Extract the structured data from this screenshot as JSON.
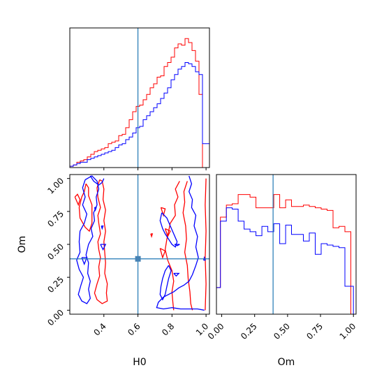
{
  "chart_data": {
    "type": "corner",
    "parameters": [
      "H0",
      "Om"
    ],
    "truth": {
      "H0": 0.6,
      "Om": 0.39
    },
    "colors": {
      "red_series": "#ff0000",
      "blue_series": "#0000ff",
      "truth": "#1f77b4"
    },
    "panels": {
      "h0_hist": {
        "xlim": [
          0.2,
          1.02
        ],
        "ymax": 1.0,
        "bin_edges": [
          0.2,
          0.2205,
          0.241,
          0.2615,
          0.282,
          0.3025,
          0.323,
          0.3435,
          0.364,
          0.3845,
          0.405,
          0.4255,
          0.446,
          0.4665,
          0.487,
          0.5075,
          0.528,
          0.5485,
          0.569,
          0.5895,
          0.61,
          0.6305,
          0.651,
          0.6715,
          0.692,
          0.7125,
          0.733,
          0.7535,
          0.774,
          0.7945,
          0.815,
          0.8355,
          0.856,
          0.8765,
          0.897,
          0.9175,
          0.938,
          0.9585,
          0.979,
          0.9995,
          1.02
        ],
        "red": [
          0.01,
          0.02,
          0.04,
          0.05,
          0.06,
          0.08,
          0.1,
          0.12,
          0.13,
          0.14,
          0.15,
          0.18,
          0.19,
          0.2,
          0.24,
          0.25,
          0.3,
          0.36,
          0.42,
          0.46,
          0.47,
          0.51,
          0.55,
          0.6,
          0.63,
          0.68,
          0.69,
          0.76,
          0.79,
          0.83,
          0.9,
          0.93,
          0.92,
          0.97,
          0.94,
          0.88,
          0.8,
          0.55,
          0.0,
          0.0
        ],
        "blue": [
          0.01,
          0.02,
          0.03,
          0.04,
          0.04,
          0.06,
          0.07,
          0.08,
          0.09,
          0.1,
          0.11,
          0.12,
          0.13,
          0.15,
          0.17,
          0.18,
          0.21,
          0.23,
          0.26,
          0.3,
          0.31,
          0.36,
          0.39,
          0.42,
          0.45,
          0.48,
          0.52,
          0.56,
          0.6,
          0.66,
          0.7,
          0.74,
          0.76,
          0.79,
          0.78,
          0.76,
          0.72,
          0.7,
          0.18,
          0.18
        ]
      },
      "om_hist": {
        "xlim": [
          -0.04,
          1.02
        ],
        "ymax": 1.0,
        "bin_edges": [
          -0.04,
          -0.01,
          0.035,
          0.08,
          0.125,
          0.17,
          0.215,
          0.26,
          0.305,
          0.35,
          0.395,
          0.44,
          0.485,
          0.53,
          0.575,
          0.62,
          0.665,
          0.71,
          0.755,
          0.8,
          0.845,
          0.89,
          0.935,
          0.98,
          1.0
        ],
        "red": [
          0.2,
          0.73,
          0.82,
          0.83,
          0.9,
          0.9,
          0.88,
          0.8,
          0.8,
          0.8,
          0.9,
          0.8,
          0.86,
          0.81,
          0.81,
          0.82,
          0.81,
          0.8,
          0.79,
          0.78,
          0.65,
          0.66,
          0.62,
          0.0
        ],
        "blue": [
          0.2,
          0.7,
          0.8,
          0.79,
          0.7,
          0.64,
          0.62,
          0.59,
          0.66,
          0.62,
          0.68,
          0.53,
          0.67,
          0.6,
          0.6,
          0.55,
          0.61,
          0.45,
          0.53,
          0.52,
          0.51,
          0.5,
          0.21,
          0.21
        ]
      },
      "joint": {
        "xlim": [
          0.2,
          1.02
        ],
        "ylim": [
          -0.03,
          1.03
        ],
        "red_contours": [
          [
            [
              0.295,
              0.96
            ],
            [
              0.285,
              0.9
            ],
            [
              0.27,
              0.86
            ],
            [
              0.255,
              0.78
            ],
            [
              0.26,
              0.7
            ],
            [
              0.29,
              0.63
            ],
            [
              0.315,
              0.6
            ],
            [
              0.33,
              0.66
            ],
            [
              0.33,
              0.72
            ],
            [
              0.33,
              0.8
            ],
            [
              0.31,
              0.87
            ],
            [
              0.31,
              0.93
            ],
            [
              0.295,
              0.96
            ]
          ],
          [
            [
              0.375,
              0.99
            ],
            [
              0.36,
              0.93
            ],
            [
              0.365,
              0.86
            ],
            [
              0.38,
              0.78
            ],
            [
              0.365,
              0.72
            ],
            [
              0.37,
              0.66
            ],
            [
              0.38,
              0.58
            ],
            [
              0.365,
              0.52
            ],
            [
              0.37,
              0.46
            ],
            [
              0.38,
              0.4
            ],
            [
              0.37,
              0.33
            ],
            [
              0.375,
              0.26
            ],
            [
              0.36,
              0.2
            ],
            [
              0.345,
              0.13
            ],
            [
              0.36,
              0.08
            ],
            [
              0.39,
              0.05
            ],
            [
              0.42,
              0.07
            ],
            [
              0.415,
              0.13
            ],
            [
              0.42,
              0.2
            ],
            [
              0.405,
              0.28
            ],
            [
              0.41,
              0.36
            ],
            [
              0.405,
              0.44
            ],
            [
              0.4,
              0.52
            ],
            [
              0.41,
              0.6
            ],
            [
              0.4,
              0.68
            ],
            [
              0.41,
              0.76
            ],
            [
              0.395,
              0.84
            ],
            [
              0.4,
              0.92
            ],
            [
              0.39,
              0.98
            ],
            [
              0.375,
              0.99
            ]
          ],
          [
            [
              0.23,
              0.86
            ],
            [
              0.25,
              0.8
            ],
            [
              0.26,
              0.84
            ],
            [
              0.245,
              0.88
            ],
            [
              0.23,
              0.86
            ]
          ],
          [
            [
              0.845,
              0.98
            ],
            [
              0.82,
              0.92
            ],
            [
              0.835,
              0.86
            ],
            [
              0.815,
              0.8
            ],
            [
              0.82,
              0.72
            ],
            [
              0.79,
              0.66
            ],
            [
              0.78,
              0.6
            ],
            [
              0.77,
              0.54
            ],
            [
              0.76,
              0.46
            ],
            [
              0.775,
              0.38
            ],
            [
              0.8,
              0.3
            ],
            [
              0.81,
              0.22
            ],
            [
              0.8,
              0.14
            ],
            [
              0.805,
              0.06
            ],
            [
              0.81,
              0.0
            ]
          ],
          [
            [
              0.89,
              0.98
            ],
            [
              0.87,
              0.9
            ],
            [
              0.875,
              0.82
            ],
            [
              0.865,
              0.74
            ],
            [
              0.88,
              0.64
            ],
            [
              0.885,
              0.54
            ],
            [
              0.875,
              0.44
            ],
            [
              0.89,
              0.34
            ],
            [
              0.895,
              0.24
            ],
            [
              0.905,
              0.14
            ],
            [
              0.91,
              0.05
            ],
            [
              0.92,
              0.0
            ]
          ],
          [
            [
              0.76,
              0.62
            ],
            [
              0.775,
              0.56
            ],
            [
              0.79,
              0.6
            ],
            [
              0.76,
              0.62
            ]
          ],
          [
            [
              0.73,
              0.47
            ],
            [
              0.745,
              0.4
            ],
            [
              0.76,
              0.45
            ],
            [
              0.73,
              0.47
            ]
          ],
          [
            [
              0.735,
              0.78
            ],
            [
              0.75,
              0.72
            ],
            [
              0.76,
              0.77
            ],
            [
              0.735,
              0.78
            ]
          ],
          [
            [
              1.0,
              1.0
            ],
            [
              0.995,
              0.8
            ],
            [
              1.0,
              0.6
            ],
            [
              0.995,
              0.4
            ],
            [
              1.0,
              0.2
            ],
            [
              0.995,
              0.0
            ]
          ],
          [
            [
              0.675,
              0.58
            ],
            [
              0.68,
              0.56
            ],
            [
              0.685,
              0.58
            ],
            [
              0.675,
              0.58
            ]
          ]
        ],
        "blue_contours": [
          [
            [
              0.29,
              0.99
            ],
            [
              0.275,
              0.93
            ],
            [
              0.29,
              0.86
            ],
            [
              0.275,
              0.8
            ],
            [
              0.3,
              0.73
            ],
            [
              0.285,
              0.66
            ],
            [
              0.26,
              0.6
            ],
            [
              0.255,
              0.52
            ],
            [
              0.26,
              0.44
            ],
            [
              0.24,
              0.38
            ],
            [
              0.255,
              0.31
            ],
            [
              0.28,
              0.25
            ],
            [
              0.265,
              0.19
            ],
            [
              0.25,
              0.12
            ],
            [
              0.27,
              0.07
            ],
            [
              0.3,
              0.05
            ],
            [
              0.32,
              0.09
            ],
            [
              0.31,
              0.16
            ],
            [
              0.32,
              0.22
            ],
            [
              0.305,
              0.28
            ],
            [
              0.31,
              0.36
            ],
            [
              0.295,
              0.42
            ],
            [
              0.31,
              0.5
            ],
            [
              0.335,
              0.56
            ],
            [
              0.325,
              0.62
            ],
            [
              0.345,
              0.68
            ],
            [
              0.34,
              0.74
            ],
            [
              0.36,
              0.8
            ],
            [
              0.355,
              0.86
            ],
            [
              0.37,
              0.92
            ],
            [
              0.36,
              0.98
            ],
            [
              0.33,
              1.02
            ],
            [
              0.29,
              0.99
            ]
          ],
          [
            [
              0.385,
              0.64
            ],
            [
              0.39,
              0.62
            ],
            [
              0.395,
              0.64
            ],
            [
              0.385,
              0.64
            ]
          ],
          [
            [
              0.38,
              0.5
            ],
            [
              0.395,
              0.46
            ],
            [
              0.41,
              0.5
            ],
            [
              0.38,
              0.5
            ]
          ],
          [
            [
              0.27,
              0.4
            ],
            [
              0.285,
              0.35
            ],
            [
              0.3,
              0.4
            ],
            [
              0.27,
              0.4
            ]
          ],
          [
            [
              0.4,
              1.0
            ],
            [
              0.39,
              0.97
            ],
            [
              0.37,
              0.95
            ],
            [
              0.34,
              0.98
            ],
            [
              0.32,
              1.02
            ]
          ],
          [
            [
              0.9,
              1.02
            ],
            [
              0.915,
              0.96
            ],
            [
              0.9,
              0.9
            ],
            [
              0.92,
              0.84
            ],
            [
              0.915,
              0.78
            ],
            [
              0.94,
              0.72
            ],
            [
              0.93,
              0.64
            ],
            [
              0.95,
              0.56
            ],
            [
              0.94,
              0.48
            ],
            [
              0.955,
              0.4
            ],
            [
              0.94,
              0.34
            ],
            [
              0.92,
              0.27
            ],
            [
              0.9,
              0.22
            ],
            [
              0.87,
              0.19
            ],
            [
              0.84,
              0.17
            ],
            [
              0.81,
              0.14
            ],
            [
              0.78,
              0.12
            ],
            [
              0.75,
              0.1
            ],
            [
              0.72,
              0.06
            ],
            [
              0.71,
              0.02
            ],
            [
              0.75,
              0.01
            ],
            [
              0.8,
              0.02
            ],
            [
              0.85,
              0.01
            ],
            [
              0.9,
              0.01
            ],
            [
              0.95,
              0.01
            ],
            [
              0.99,
              0.0
            ]
          ],
          [
            [
              0.78,
              0.34
            ],
            [
              0.76,
              0.3
            ],
            [
              0.745,
              0.24
            ],
            [
              0.735,
              0.18
            ],
            [
              0.73,
              0.12
            ],
            [
              0.745,
              0.08
            ],
            [
              0.76,
              0.12
            ],
            [
              0.77,
              0.18
            ],
            [
              0.78,
              0.24
            ],
            [
              0.795,
              0.3
            ],
            [
              0.78,
              0.34
            ]
          ],
          [
            [
              0.74,
              0.74
            ],
            [
              0.73,
              0.68
            ],
            [
              0.745,
              0.62
            ],
            [
              0.76,
              0.58
            ],
            [
              0.78,
              0.54
            ],
            [
              0.8,
              0.5
            ],
            [
              0.82,
              0.48
            ],
            [
              0.83,
              0.52
            ],
            [
              0.81,
              0.58
            ],
            [
              0.79,
              0.64
            ],
            [
              0.77,
              0.7
            ],
            [
              0.74,
              0.74
            ]
          ],
          [
            [
              0.345,
              0.78
            ],
            [
              0.35,
              0.76
            ],
            [
              0.355,
              0.78
            ],
            [
              0.345,
              0.78
            ]
          ],
          [
            [
              0.81,
              0.28
            ],
            [
              0.825,
              0.26
            ],
            [
              0.84,
              0.28
            ],
            [
              0.81,
              0.28
            ]
          ],
          [
            [
              0.815,
              0.5
            ],
            [
              0.83,
              0.49
            ],
            [
              0.845,
              0.5
            ],
            [
              0.815,
              0.5
            ]
          ],
          [
            [
              0.985,
              0.38
            ],
            [
              0.99,
              0.4
            ],
            [
              0.995,
              0.38
            ],
            [
              0.985,
              0.38
            ]
          ]
        ]
      }
    },
    "h0_ticks": [
      "0.4",
      "0.6",
      "0.8",
      "1.0"
    ],
    "om_ticks": [
      "0.00",
      "0.25",
      "0.50",
      "0.75",
      "1.00"
    ],
    "xlabel_left": "H0",
    "xlabel_right": "Om",
    "ylabel_joint": "Om"
  }
}
